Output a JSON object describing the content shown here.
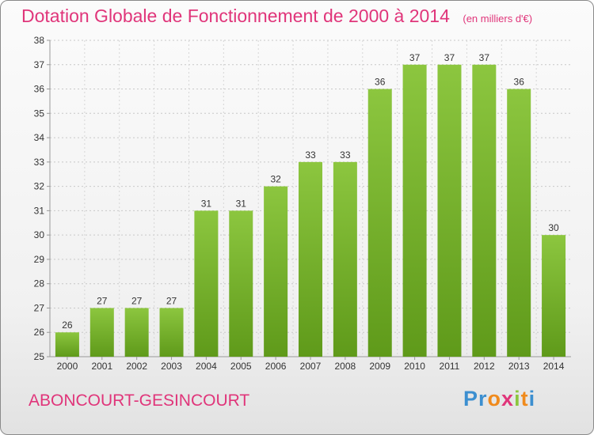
{
  "chart_data": {
    "type": "bar",
    "title": "Dotation Globale de Fonctionnement de 2000 à 2014",
    "unit_label": "(en milliers d'€)",
    "categories": [
      "2000",
      "2001",
      "2002",
      "2003",
      "2004",
      "2005",
      "2006",
      "2007",
      "2008",
      "2009",
      "2010",
      "2011",
      "2012",
      "2013",
      "2014"
    ],
    "series": [
      {
        "values": [
          26,
          27,
          27,
          27,
          31,
          31,
          32,
          33,
          33,
          36,
          37,
          37,
          37,
          36,
          30
        ]
      }
    ],
    "ylim": [
      25,
      38
    ],
    "yticks": [
      25,
      26,
      27,
      28,
      29,
      30,
      31,
      32,
      33,
      34,
      35,
      36,
      37,
      38
    ],
    "grid": true,
    "bar_color": "#8cc63f",
    "bar_color_dark": "#5f9a1a",
    "text_color": "#e0357a"
  },
  "footer": {
    "commune": "ABONCOURT-GESINCOURT",
    "brand": [
      {
        "ch": "P",
        "color": "#3c8fd0"
      },
      {
        "ch": "r",
        "color": "#3c8fd0"
      },
      {
        "ch": "o",
        "color": "#f08a1c"
      },
      {
        "ch": "x",
        "color": "#e0357a"
      },
      {
        "ch": "i",
        "color": "#8cc63f"
      },
      {
        "ch": "t",
        "color": "#f08a1c"
      },
      {
        "ch": "i",
        "color": "#3c8fd0"
      }
    ]
  }
}
